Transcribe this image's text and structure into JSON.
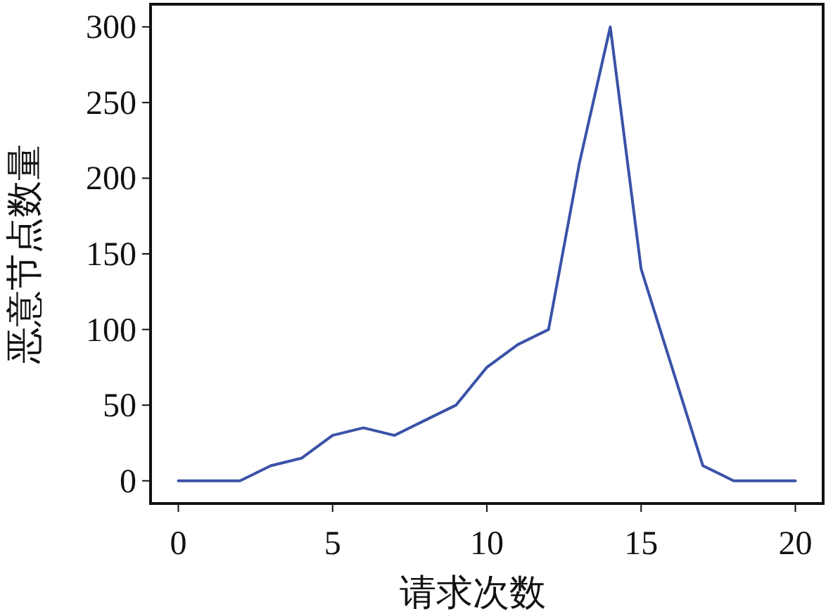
{
  "chart_data": {
    "type": "line",
    "xlabel": "请求次数",
    "ylabel": "恶意节点数量",
    "x": [
      0,
      1,
      2,
      3,
      4,
      5,
      6,
      7,
      8,
      9,
      10,
      11,
      12,
      13,
      14,
      15,
      16,
      17,
      18,
      19,
      20
    ],
    "series": [
      {
        "color": "#3a52a8",
        "values": [
          0,
          0,
          0,
          10,
          15,
          30,
          35,
          30,
          40,
          50,
          75,
          90,
          100,
          210,
          300,
          140,
          75,
          10,
          0,
          0,
          0
        ]
      }
    ],
    "xlim": [
      -0.9,
      20.9
    ],
    "ylim": [
      -15,
      315
    ],
    "xticks": [
      0,
      5,
      10,
      15,
      20
    ],
    "yticks": [
      0,
      50,
      100,
      150,
      200,
      250,
      300
    ],
    "grid": false,
    "marker": "none",
    "line_style": "solid"
  }
}
